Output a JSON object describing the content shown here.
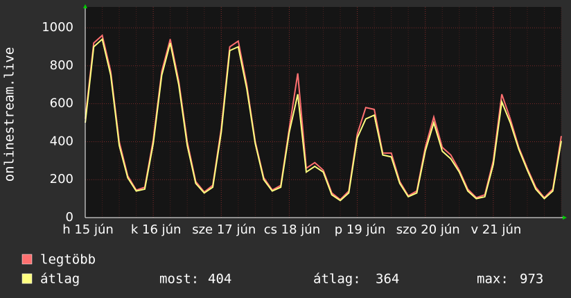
{
  "chart_data": {
    "type": "line",
    "y_label": "onlinestream.live",
    "x": [
      0,
      3,
      6,
      9,
      12,
      15,
      18,
      21,
      24,
      27,
      30,
      33,
      36,
      39,
      42,
      45,
      48,
      51,
      54,
      57,
      60,
      63,
      66,
      69,
      72,
      75,
      78,
      81,
      84,
      87,
      90,
      93,
      96,
      99,
      102,
      105,
      108,
      111,
      114,
      117,
      120,
      123,
      126,
      129,
      132,
      135,
      138,
      141,
      144,
      147,
      150,
      153,
      156,
      159,
      162,
      165,
      168
    ],
    "xlim": [
      0,
      168
    ],
    "xticks": [
      {
        "value": 0,
        "label": "h 15 jún"
      },
      {
        "value": 24,
        "label": "k 16 jún"
      },
      {
        "value": 48,
        "label": "sze 17 jún"
      },
      {
        "value": 72,
        "label": "cs 18 jún"
      },
      {
        "value": 96,
        "label": "p 19 jún"
      },
      {
        "value": 120,
        "label": "szo 20 jún"
      },
      {
        "value": 144,
        "label": "v 21 jún"
      }
    ],
    "ylim": [
      0,
      1110
    ],
    "yticks": [
      0,
      200,
      400,
      600,
      800,
      1000
    ],
    "grid": true,
    "series": [
      {
        "name": "legtöbb",
        "color": "#ff7070",
        "values": [
          520,
          920,
          960,
          770,
          400,
          220,
          145,
          160,
          410,
          770,
          940,
          720,
          400,
          190,
          135,
          170,
          470,
          900,
          930,
          700,
          400,
          210,
          145,
          170,
          470,
          760,
          260,
          290,
          250,
          130,
          95,
          140,
          440,
          580,
          570,
          340,
          340,
          190,
          115,
          140,
          370,
          530,
          370,
          330,
          250,
          150,
          105,
          120,
          300,
          650,
          520,
          370,
          260,
          160,
          105,
          150,
          430
        ]
      },
      {
        "name": "átlag",
        "color": "#ffff80",
        "values": [
          500,
          900,
          940,
          750,
          380,
          210,
          140,
          150,
          390,
          750,
          920,
          700,
          380,
          180,
          130,
          160,
          450,
          880,
          900,
          680,
          390,
          200,
          140,
          160,
          450,
          650,
          240,
          270,
          240,
          120,
          90,
          130,
          420,
          520,
          540,
          330,
          320,
          180,
          110,
          130,
          350,
          500,
          350,
          310,
          240,
          140,
          100,
          110,
          280,
          610,
          500,
          360,
          250,
          150,
          100,
          140,
          404
        ]
      }
    ],
    "stats": [
      {
        "label": "most:",
        "value": 404
      },
      {
        "label": "átlag:",
        "value": 364
      },
      {
        "label": "max:",
        "value": 973
      }
    ]
  }
}
